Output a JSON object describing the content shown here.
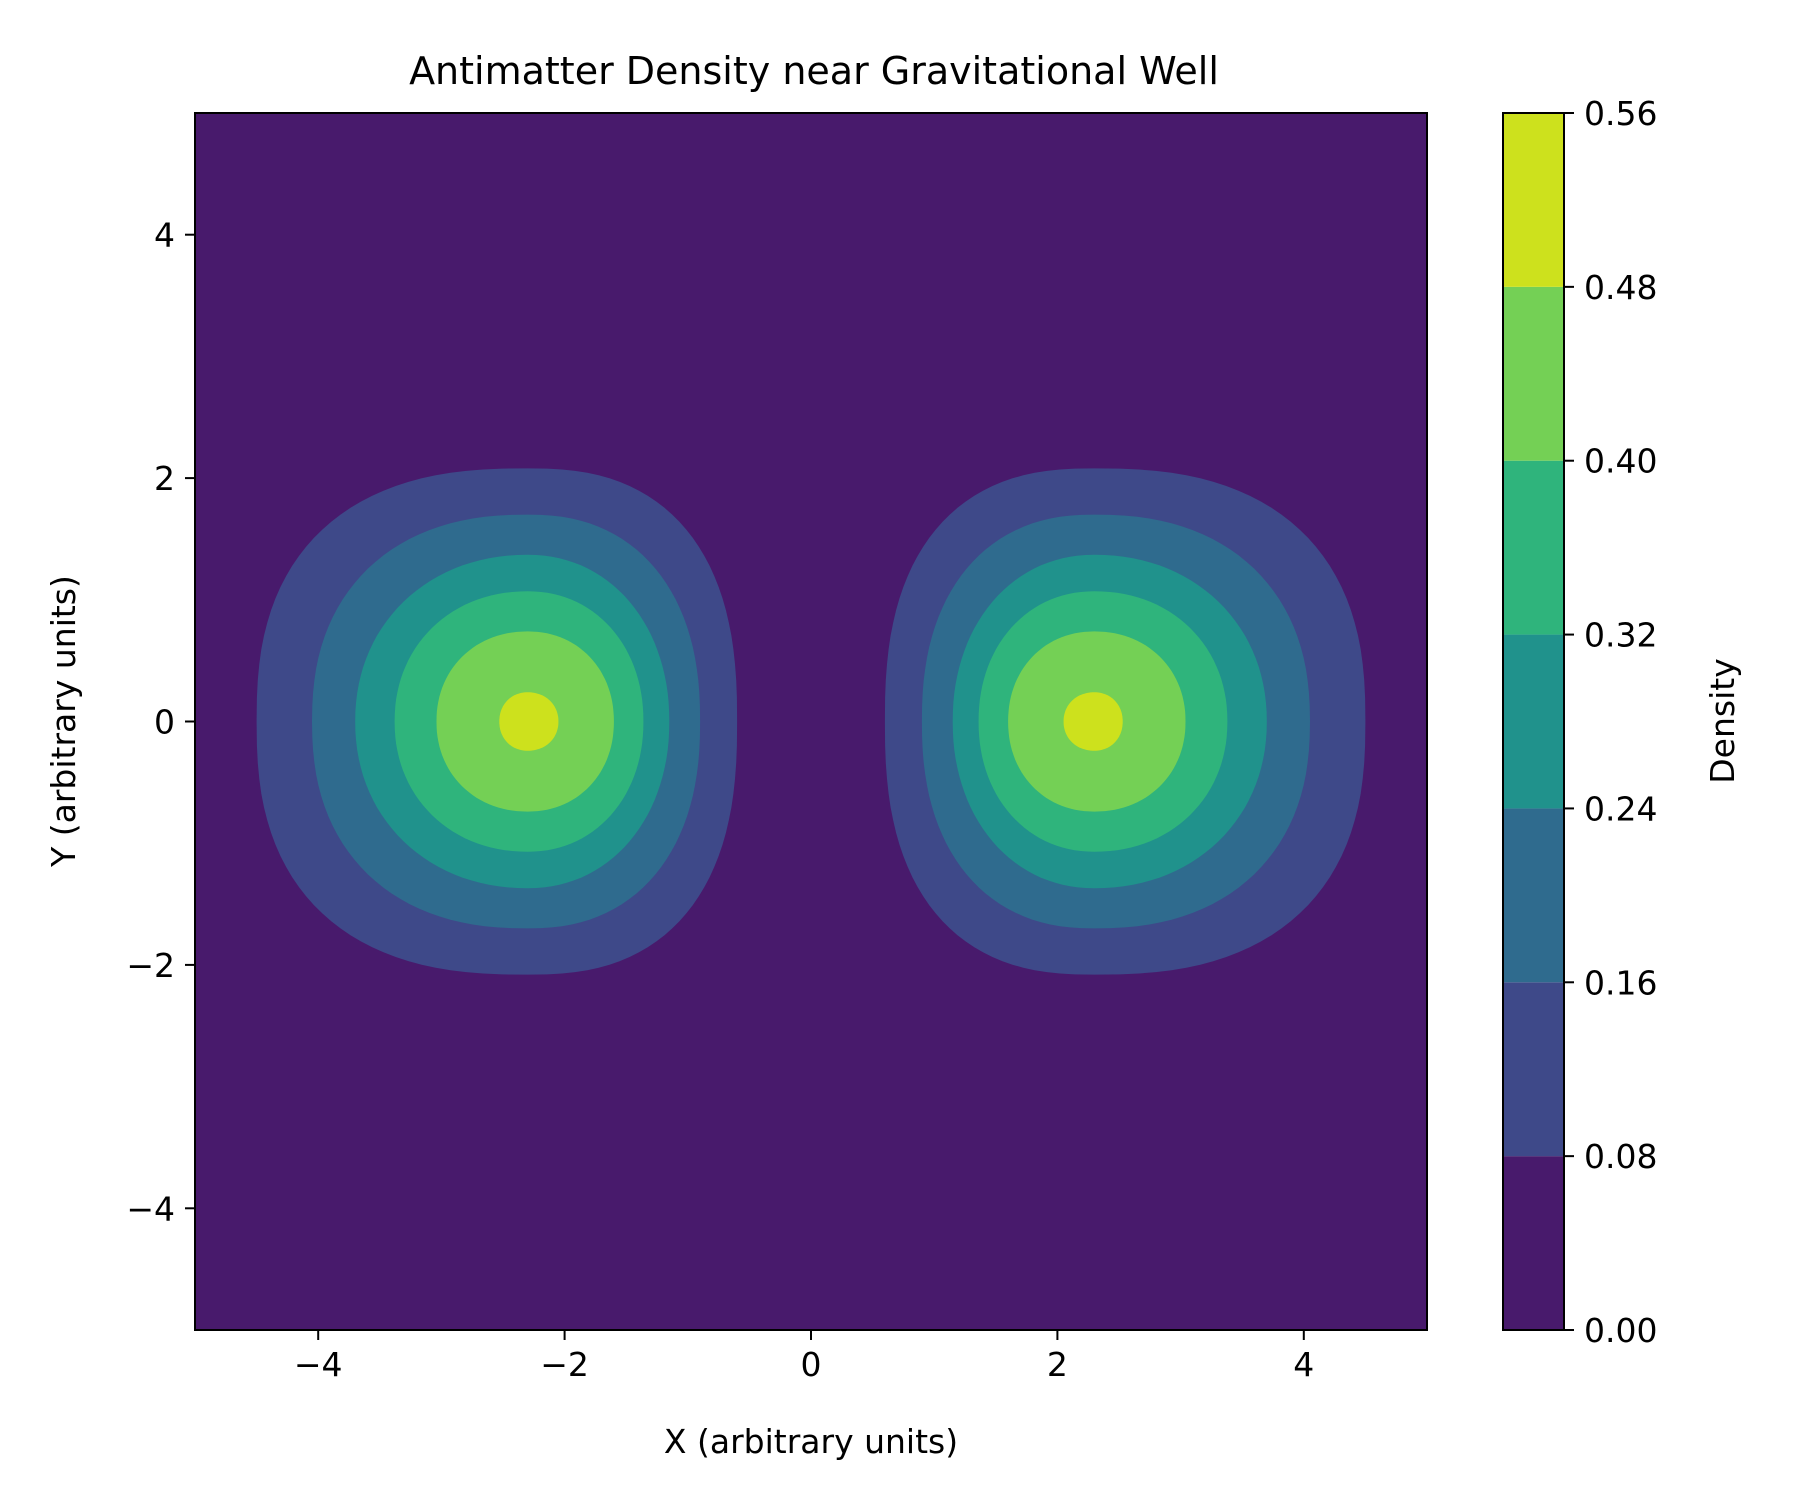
{
  "chart_data": {
    "type": "heatmap",
    "subtype": "filled-contour",
    "title": "Antimatter Density near Gravitational Well",
    "xlabel": "X (arbitrary units)",
    "ylabel": "Y (arbitrary units)",
    "xlim": [
      -5,
      5
    ],
    "ylim": [
      -5,
      5
    ],
    "x_ticks": [
      -4,
      -2,
      0,
      2,
      4
    ],
    "y_ticks": [
      -4,
      -2,
      0,
      2,
      4
    ],
    "x_tick_labels": [
      "−4",
      "−2",
      "0",
      "2",
      "4"
    ],
    "y_tick_labels": [
      "−4",
      "−2",
      "0",
      "2",
      "4"
    ],
    "colormap": "viridis",
    "grid": false,
    "colorbar": {
      "label": "Density",
      "levels": [
        0.0,
        0.08,
        0.16,
        0.24,
        0.32,
        0.4,
        0.48,
        0.56
      ],
      "tick_labels": [
        "0.00",
        "0.08",
        "0.16",
        "0.24",
        "0.32",
        "0.40",
        "0.48",
        "0.56"
      ],
      "band_colors": [
        "#481a6c",
        "#3e4989",
        "#2f6b8e",
        "#20928c",
        "#2fb47c",
        "#74d055",
        "#cde11d"
      ]
    },
    "peaks": [
      {
        "x": -2.3,
        "y": 0.0,
        "max_density": 0.53
      },
      {
        "x": 2.3,
        "y": 0.0,
        "max_density": 0.53
      }
    ],
    "contours": [
      {
        "level": 0.08,
        "left_x_extent": [
          -4.5,
          -0.6
        ],
        "right_x_extent": [
          0.6,
          4.5
        ],
        "y_extent": [
          -2.08,
          2.08
        ]
      },
      {
        "level": 0.16,
        "left_x_extent": [
          -4.05,
          -0.9
        ],
        "right_x_extent": [
          0.9,
          4.05
        ],
        "y_extent": [
          -1.7,
          1.7
        ]
      },
      {
        "level": 0.24,
        "left_x_extent": [
          -3.7,
          -1.15
        ],
        "right_x_extent": [
          1.15,
          3.7
        ],
        "y_extent": [
          -1.37,
          1.37
        ]
      },
      {
        "level": 0.32,
        "left_x_extent": [
          -3.38,
          -1.36
        ],
        "right_x_extent": [
          1.36,
          3.38
        ],
        "y_extent": [
          -1.07,
          1.07
        ]
      },
      {
        "level": 0.4,
        "left_x_extent": [
          -3.04,
          -1.6
        ],
        "right_x_extent": [
          1.6,
          3.04
        ],
        "y_extent": [
          -0.74,
          0.74
        ]
      },
      {
        "level": 0.48,
        "left_x_extent": [
          -2.53,
          -2.05
        ],
        "right_x_extent": [
          2.05,
          2.53
        ],
        "y_extent": [
          -0.24,
          0.24
        ]
      }
    ]
  }
}
